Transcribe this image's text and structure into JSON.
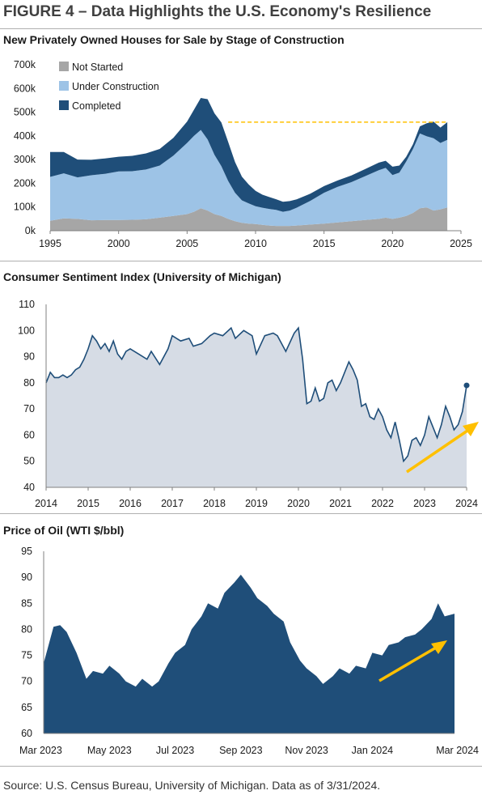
{
  "figure": {
    "title": "FIGURE 4 – Data Highlights the U.S. Economy's Resilience",
    "source": "Source: U.S. Census Bureau, University of Michigan. Data as of 3/31/2024."
  },
  "colors": {
    "not_started": "#a6a6a6",
    "under_construction": "#9dc3e6",
    "completed": "#1f4e79",
    "sentiment_line": "#1f4e79",
    "sentiment_fill": "#d6dce5",
    "oil_fill": "#1f4e79",
    "arrow": "#ffc000",
    "dashed": "#ffc000"
  },
  "chart_data": [
    {
      "type": "area",
      "title": "New Privately Owned Houses for Sale by Stage of Construction",
      "stacked": true,
      "legend_position": "top-left",
      "xlim": [
        1995,
        2025
      ],
      "x_ticks": [
        "1995",
        "2000",
        "2005",
        "2010",
        "2015",
        "2020",
        "2025"
      ],
      "ylim": [
        0,
        700000
      ],
      "y_ticks": [
        "0k",
        "100k",
        "200k",
        "300k",
        "400k",
        "500k",
        "600k",
        "700k"
      ],
      "reference_line_value": 458000,
      "x": [
        1995.0,
        1996.0,
        1997.0,
        1998.0,
        1999.0,
        2000.0,
        2001.0,
        2002.0,
        2003.0,
        2004.0,
        2005.0,
        2005.5,
        2006.0,
        2006.5,
        2007.0,
        2007.5,
        2008.0,
        2008.5,
        2009.0,
        2009.5,
        2010.0,
        2010.5,
        2011.0,
        2011.5,
        2012.0,
        2012.5,
        2013.0,
        2014.0,
        2015.0,
        2016.0,
        2017.0,
        2018.0,
        2019.0,
        2019.5,
        2020.0,
        2020.5,
        2021.0,
        2021.5,
        2022.0,
        2022.5,
        2023.0,
        2023.5,
        2024.0
      ],
      "series": [
        {
          "name": "Not Started",
          "values": [
            42000,
            52000,
            50000,
            44000,
            45000,
            45000,
            46000,
            48000,
            55000,
            62000,
            70000,
            80000,
            95000,
            85000,
            70000,
            62000,
            50000,
            40000,
            33000,
            30000,
            28000,
            25000,
            22000,
            20000,
            20000,
            20000,
            22000,
            26000,
            30000,
            35000,
            40000,
            45000,
            50000,
            55000,
            50000,
            55000,
            62000,
            75000,
            95000,
            98000,
            85000,
            90000,
            98000
          ]
        },
        {
          "name": "Under Construction",
          "values": [
            185000,
            190000,
            175000,
            190000,
            195000,
            205000,
            205000,
            210000,
            220000,
            255000,
            300000,
            320000,
            330000,
            300000,
            250000,
            210000,
            160000,
            120000,
            95000,
            85000,
            75000,
            72000,
            70000,
            68000,
            60000,
            65000,
            75000,
            100000,
            130000,
            150000,
            165000,
            185000,
            205000,
            210000,
            185000,
            190000,
            230000,
            270000,
            315000,
            300000,
            305000,
            280000,
            285000
          ]
        },
        {
          "name": "Completed",
          "values": [
            105000,
            90000,
            75000,
            65000,
            65000,
            62000,
            65000,
            68000,
            70000,
            75000,
            90000,
            110000,
            135000,
            170000,
            175000,
            185000,
            165000,
            130000,
            100000,
            80000,
            65000,
            55000,
            50000,
            45000,
            42000,
            40000,
            35000,
            30000,
            28000,
            27000,
            28000,
            30000,
            32000,
            30000,
            35000,
            30000,
            20000,
            20000,
            30000,
            55000,
            70000,
            65000,
            75000
          ]
        }
      ]
    },
    {
      "type": "area",
      "title": "Consumer Sentiment Index (University of Michigan)",
      "xlim": [
        2014.0,
        2024.0
      ],
      "x_ticks": [
        "2014",
        "2015",
        "2016",
        "2017",
        "2018",
        "2019",
        "2020",
        "2021",
        "2022",
        "2023",
        "2024"
      ],
      "ylim": [
        40,
        110
      ],
      "y_ticks": [
        "40",
        "50",
        "60",
        "70",
        "80",
        "90",
        "100",
        "110"
      ],
      "x": [
        2014.0,
        2014.1,
        2014.2,
        2014.3,
        2014.4,
        2014.5,
        2014.6,
        2014.7,
        2014.8,
        2014.9,
        2015.0,
        2015.1,
        2015.2,
        2015.3,
        2015.4,
        2015.5,
        2015.6,
        2015.7,
        2015.8,
        2015.9,
        2016.0,
        2016.2,
        2016.4,
        2016.5,
        2016.7,
        2016.9,
        2017.0,
        2017.2,
        2017.4,
        2017.5,
        2017.7,
        2017.9,
        2018.0,
        2018.2,
        2018.4,
        2018.5,
        2018.7,
        2018.9,
        2019.0,
        2019.2,
        2019.4,
        2019.5,
        2019.7,
        2019.9,
        2020.0,
        2020.1,
        2020.2,
        2020.3,
        2020.4,
        2020.5,
        2020.6,
        2020.7,
        2020.8,
        2020.9,
        2021.0,
        2021.1,
        2021.2,
        2021.3,
        2021.4,
        2021.5,
        2021.6,
        2021.7,
        2021.8,
        2021.9,
        2022.0,
        2022.1,
        2022.2,
        2022.3,
        2022.4,
        2022.5,
        2022.6,
        2022.7,
        2022.8,
        2022.9,
        2023.0,
        2023.1,
        2023.2,
        2023.3,
        2023.4,
        2023.5,
        2023.6,
        2023.7,
        2023.8,
        2023.9,
        2024.0
      ],
      "values": [
        80,
        84,
        82,
        82,
        83,
        82,
        83,
        85,
        86,
        89,
        93,
        98,
        96,
        93,
        95,
        92,
        96,
        91,
        89,
        92,
        93,
        91,
        89,
        92,
        87,
        93,
        98,
        96,
        97,
        94,
        95,
        98,
        99,
        98,
        101,
        97,
        100,
        98,
        91,
        98,
        99,
        98,
        92,
        99,
        101,
        89,
        72,
        73,
        78,
        73,
        74,
        80,
        81,
        77,
        80,
        84,
        88,
        85,
        81,
        71,
        72,
        67,
        66,
        70,
        67,
        62,
        59,
        65,
        58,
        50,
        52,
        58,
        59,
        56,
        60,
        67,
        63,
        59,
        64,
        71,
        67,
        62,
        64,
        69,
        79
      ],
      "last_point_value": 79,
      "trend_arrow": true
    },
    {
      "type": "area",
      "title": "Price of Oil (WTI $/bbl)",
      "xlim": [
        0,
        12.5
      ],
      "x_ticks": [
        "Mar 2023",
        "May 2023",
        "Jul 2023",
        "Sep 2023",
        "Nov 2023",
        "Jan 2024",
        "Mar 2024"
      ],
      "ylim": [
        60,
        95
      ],
      "y_ticks": [
        "60",
        "65",
        "70",
        "75",
        "80",
        "85",
        "90",
        "95"
      ],
      "x": [
        0.0,
        0.3,
        0.5,
        0.7,
        1.0,
        1.3,
        1.5,
        1.8,
        2.0,
        2.3,
        2.5,
        2.8,
        3.0,
        3.3,
        3.5,
        3.8,
        4.0,
        4.3,
        4.5,
        4.8,
        5.0,
        5.3,
        5.5,
        5.8,
        6.0,
        6.3,
        6.5,
        6.8,
        7.0,
        7.3,
        7.5,
        7.8,
        8.0,
        8.3,
        8.5,
        8.8,
        9.0,
        9.3,
        9.5,
        9.8,
        10.0,
        10.3,
        10.5,
        10.8,
        11.0,
        11.3,
        11.5,
        11.8,
        12.0,
        12.2,
        12.5
      ],
      "values": [
        73.5,
        80.5,
        80.8,
        79.5,
        75.5,
        70.5,
        72.0,
        71.5,
        73.0,
        71.5,
        70.0,
        69.0,
        70.5,
        69.0,
        70.0,
        73.5,
        75.5,
        77.0,
        80.0,
        82.5,
        85.0,
        84.0,
        87.0,
        89.0,
        90.5,
        88.0,
        86.0,
        84.5,
        83.0,
        81.5,
        77.5,
        74.0,
        72.5,
        71.0,
        69.5,
        71.0,
        72.5,
        71.5,
        73.0,
        72.5,
        75.5,
        75.0,
        77.0,
        77.5,
        78.5,
        79.0,
        80.0,
        82.0,
        85.0,
        82.5,
        83.0
      ],
      "trend_arrow": true
    }
  ]
}
